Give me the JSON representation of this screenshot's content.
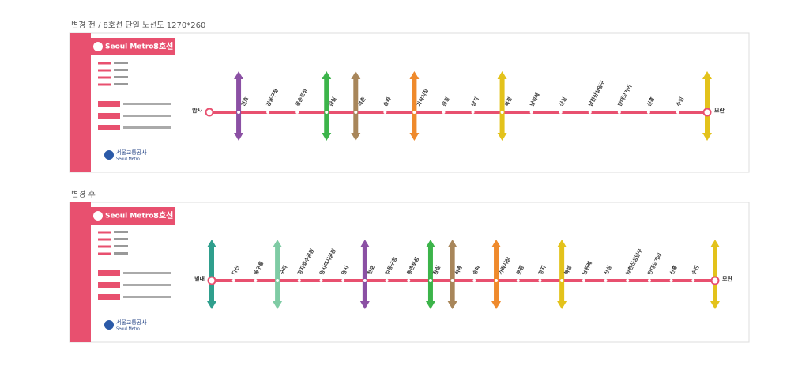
{
  "panels": [
    {
      "title": "변경 전 / 8호선 단일 노선도 1270*260",
      "brand": "Seoul Metro",
      "line": "8호선",
      "logo_ko": "서울교통공사",
      "logo_en": "Seoul Metro",
      "line_color": "#e8506f",
      "stations": [
        {
          "name": "암사"
        },
        {
          "name": "천호",
          "transfer": "#8b50a4"
        },
        {
          "name": "강동구청"
        },
        {
          "name": "몽촌토성"
        },
        {
          "name": "잠실",
          "transfer": "#3cb44a"
        },
        {
          "name": "석촌",
          "transfer": "#a8865a"
        },
        {
          "name": "송파"
        },
        {
          "name": "가락시장",
          "transfer": "#ef8a2c"
        },
        {
          "name": "문정"
        },
        {
          "name": "장지"
        },
        {
          "name": "복정",
          "transfer": "#e3c21b"
        },
        {
          "name": "남위례"
        },
        {
          "name": "산성"
        },
        {
          "name": "남한산성입구"
        },
        {
          "name": "단대오거리"
        },
        {
          "name": "신흥"
        },
        {
          "name": "수진"
        },
        {
          "name": "모란",
          "transfer": "#e3c21b"
        }
      ]
    },
    {
      "title": "변경 후",
      "brand": "Seoul Metro",
      "line": "8호선",
      "logo_ko": "서울교통공사",
      "logo_en": "Seoul Metro",
      "line_color": "#e8506f",
      "stations": [
        {
          "name": "별내",
          "transfer": "#2f9f8d"
        },
        {
          "name": "다산"
        },
        {
          "name": "동구릉"
        },
        {
          "name": "구리",
          "transfer": "#7fcba4"
        },
        {
          "name": "장자호수공원"
        },
        {
          "name": "암사역사공원"
        },
        {
          "name": "암사"
        },
        {
          "name": "천호",
          "transfer": "#8b50a4"
        },
        {
          "name": "강동구청"
        },
        {
          "name": "몽촌토성"
        },
        {
          "name": "잠실",
          "transfer": "#3cb44a"
        },
        {
          "name": "석촌",
          "transfer": "#a8865a"
        },
        {
          "name": "송파"
        },
        {
          "name": "가락시장",
          "transfer": "#ef8a2c"
        },
        {
          "name": "문정"
        },
        {
          "name": "장지"
        },
        {
          "name": "복정",
          "transfer": "#e3c21b"
        },
        {
          "name": "남위례"
        },
        {
          "name": "산성"
        },
        {
          "name": "남한산성입구"
        },
        {
          "name": "단대오거리"
        },
        {
          "name": "신흥"
        },
        {
          "name": "수진"
        },
        {
          "name": "모란",
          "transfer": "#e3c21b"
        }
      ]
    }
  ]
}
